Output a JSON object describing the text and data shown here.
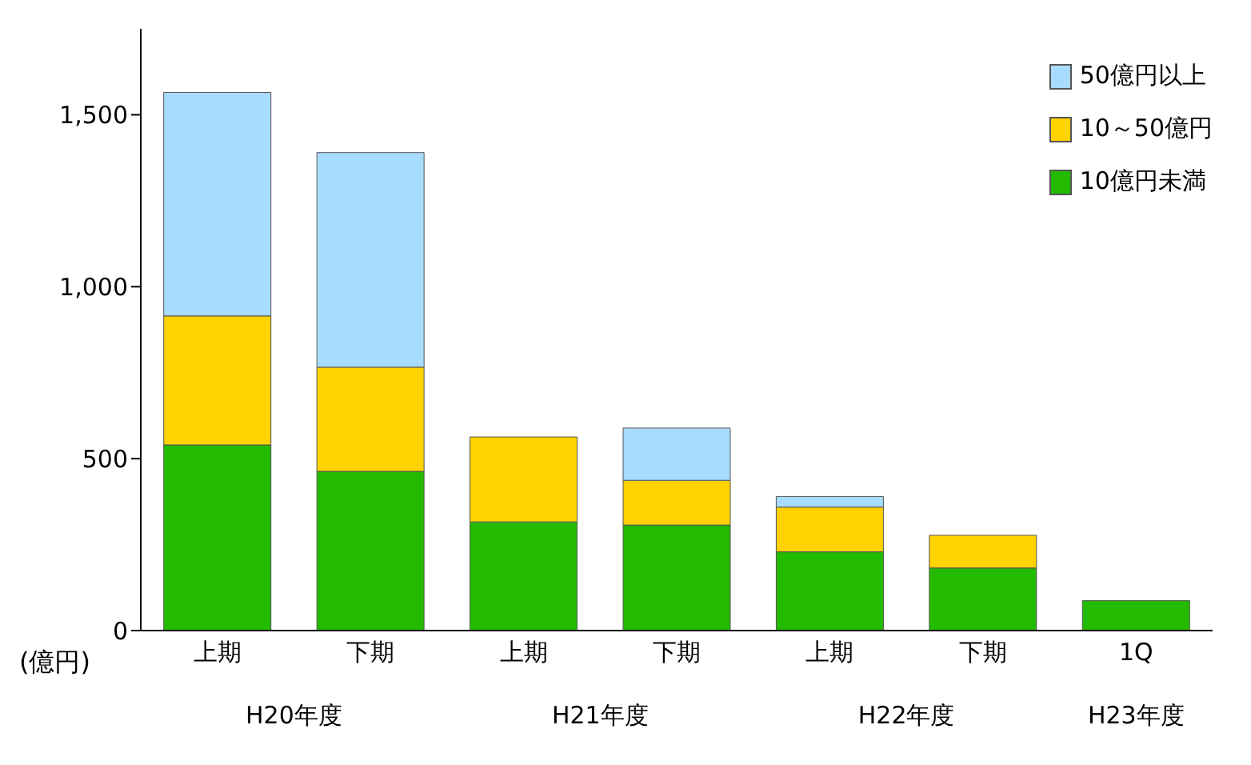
{
  "chart_data": {
    "type": "bar",
    "stacked": true,
    "ylabel": "(億円)",
    "categories": [
      "上期",
      "下期",
      "上期",
      "下期",
      "上期",
      "下期",
      "1Q"
    ],
    "series": [
      {
        "name": "10億円未満",
        "color": "#22bb00",
        "values": [
          540,
          463,
          316,
          307,
          229,
          182,
          87
        ]
      },
      {
        "name": "10～50億円",
        "color": "#ffd200",
        "values": [
          375,
          303,
          247,
          130,
          130,
          95,
          null
        ]
      },
      {
        "name": "50億円以上",
        "color": "#a8dcff",
        "values": [
          650,
          624,
          null,
          152,
          31,
          null,
          null
        ]
      }
    ],
    "ylim": [
      0,
      1750
    ],
    "yticks": [
      {
        "value": 0,
        "label": "0"
      },
      {
        "value": 500,
        "label": "500"
      },
      {
        "value": 1000,
        "label": "1,000"
      },
      {
        "value": 1500,
        "label": "1,500"
      }
    ],
    "grid": false,
    "legend": "top right",
    "annotations": [
      "H20年度",
      "H21年度",
      "H22年度",
      "H23年度"
    ]
  }
}
